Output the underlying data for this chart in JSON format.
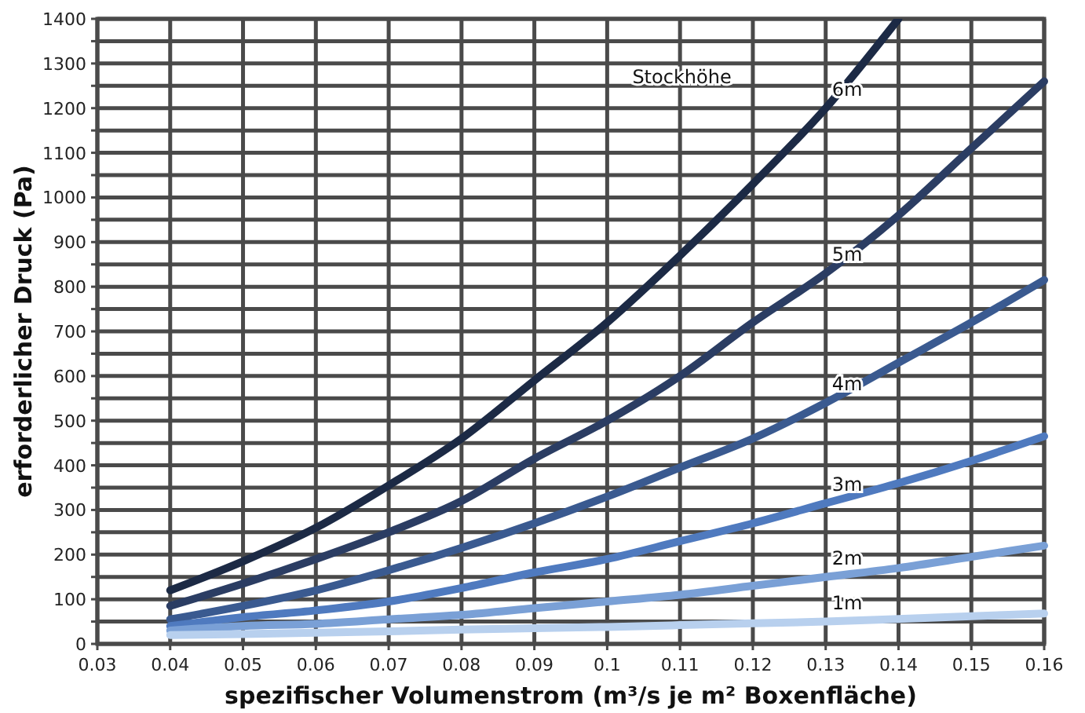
{
  "chart_data": {
    "type": "line",
    "xlabel": "spezifischer Volumenstrom (m³/s je m² Boxenfläche)",
    "ylabel": "erforderlicher Druck (Pa)",
    "legend_title": "Stockhöhe",
    "x": [
      0.04,
      0.05,
      0.06,
      0.07,
      0.08,
      0.09,
      0.1,
      0.11,
      0.12,
      0.13,
      0.14,
      0.15,
      0.16
    ],
    "series": [
      {
        "name": "6m",
        "color": "#1c2a45",
        "values": [
          120,
          185,
          260,
          355,
          460,
          590,
          720,
          870,
          1030,
          1200,
          1400,
          null,
          null
        ]
      },
      {
        "name": "5m",
        "color": "#2b3d63",
        "values": [
          85,
          135,
          190,
          250,
          320,
          415,
          500,
          600,
          720,
          830,
          960,
          1110,
          1260
        ]
      },
      {
        "name": "4m",
        "color": "#3a5a90",
        "values": [
          55,
          85,
          120,
          165,
          215,
          270,
          330,
          395,
          460,
          540,
          630,
          720,
          815
        ]
      },
      {
        "name": "3m",
        "color": "#4f7abf",
        "values": [
          40,
          60,
          75,
          95,
          125,
          160,
          190,
          230,
          270,
          315,
          360,
          410,
          465
        ]
      },
      {
        "name": "2m",
        "color": "#7aa0d6",
        "values": [
          30,
          40,
          45,
          55,
          65,
          80,
          95,
          110,
          130,
          150,
          170,
          195,
          220
        ]
      },
      {
        "name": "1m",
        "color": "#b8d0ee",
        "values": [
          20,
          22,
          25,
          28,
          32,
          35,
          38,
          42,
          46,
          50,
          56,
          62,
          68
        ]
      }
    ],
    "xlim": [
      0.03,
      0.16
    ],
    "xticks": [
      0.03,
      0.04,
      0.05,
      0.06,
      0.07,
      0.08,
      0.09,
      0.1,
      0.11,
      0.12,
      0.13,
      0.14,
      0.15,
      0.16
    ],
    "ylim": [
      0,
      1400
    ],
    "yticks": [
      0,
      {
        "value": 50,
        "label": null
      },
      100,
      {
        "value": 150,
        "label": null
      },
      200,
      {
        "value": 250,
        "label": null
      },
      300,
      {
        "value": 350,
        "label": null
      },
      400,
      {
        "value": 450,
        "label": null
      },
      500,
      {
        "value": 550,
        "label": null
      },
      600,
      {
        "value": 650,
        "label": null
      },
      700,
      {
        "value": 750,
        "label": null
      },
      800,
      {
        "value": 850,
        "label": null
      },
      900,
      {
        "value": 950,
        "label": null
      },
      1000,
      {
        "value": 1050,
        "label": null
      },
      1100,
      {
        "value": 1150,
        "label": null
      },
      1200,
      {
        "value": 1250,
        "label": null
      },
      1300,
      {
        "value": 1350,
        "label": null
      },
      1400
    ],
    "grid": true,
    "line_style": "solid",
    "marker": "none"
  }
}
